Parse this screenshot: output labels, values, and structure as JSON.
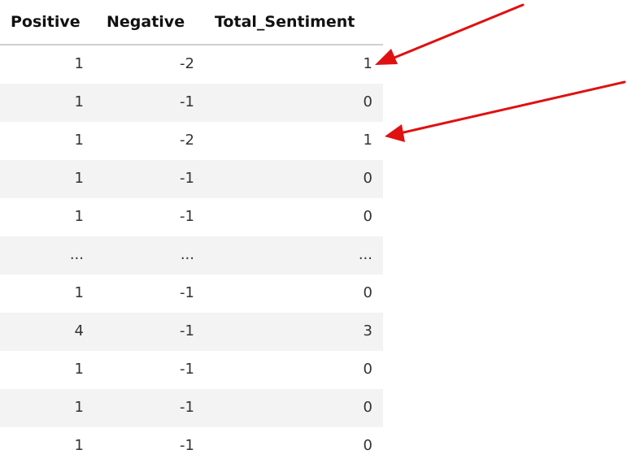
{
  "table": {
    "columns": [
      "Positive",
      "Negative",
      "Total_Sentiment"
    ],
    "rows": [
      [
        "1",
        "-2",
        "1"
      ],
      [
        "1",
        "-1",
        "0"
      ],
      [
        "1",
        "-2",
        "1"
      ],
      [
        "1",
        "-1",
        "0"
      ],
      [
        "1",
        "-1",
        "0"
      ],
      [
        "...",
        "...",
        "..."
      ],
      [
        "1",
        "-1",
        "0"
      ],
      [
        "4",
        "-1",
        "3"
      ],
      [
        "1",
        "-1",
        "0"
      ],
      [
        "1",
        "-1",
        "0"
      ],
      [
        "1",
        "-1",
        "0"
      ]
    ]
  },
  "annotations": {
    "arrow_color": "#e01010",
    "arrows": [
      {
        "points_to": "row 1, Total_Sentiment"
      },
      {
        "points_to": "row 3, Total_Sentiment"
      }
    ]
  },
  "colors": {
    "row_shade": "#f3f3f3",
    "header_rule": "#cfcfcf"
  }
}
